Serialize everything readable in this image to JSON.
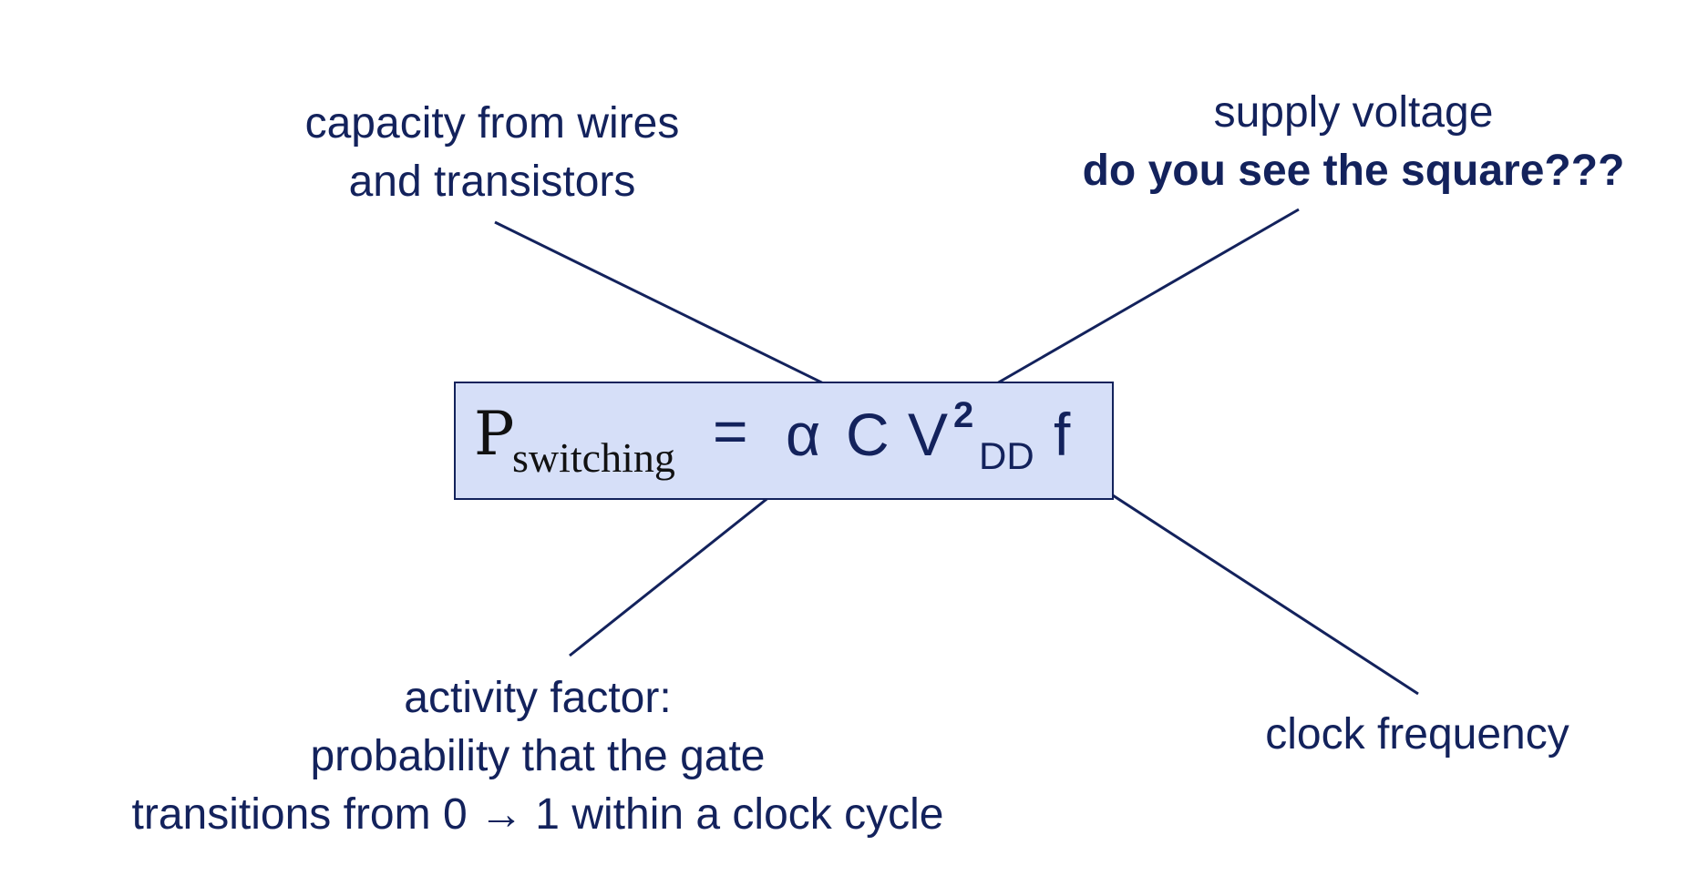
{
  "formula": {
    "p": "P",
    "p_subscript": "switching",
    "equals": "=",
    "alpha": "α",
    "c": "C",
    "v": "V",
    "v_superscript": "2",
    "v_subscript": "DD",
    "f": "f"
  },
  "annotations": {
    "capacity": {
      "line1": "capacity from wires",
      "line2": "and transistors"
    },
    "supply_voltage": {
      "line1": "supply voltage",
      "line2": "do you see the square???"
    },
    "activity_factor": {
      "line1": "activity factor:",
      "line2": "probability that the gate",
      "line3": "transitions from 0 → 1 within a clock cycle"
    },
    "clock_frequency": {
      "line1": "clock frequency"
    }
  },
  "colors": {
    "text": "#13225c",
    "box_fill": "#d6dff8",
    "box_border": "#13225c"
  }
}
